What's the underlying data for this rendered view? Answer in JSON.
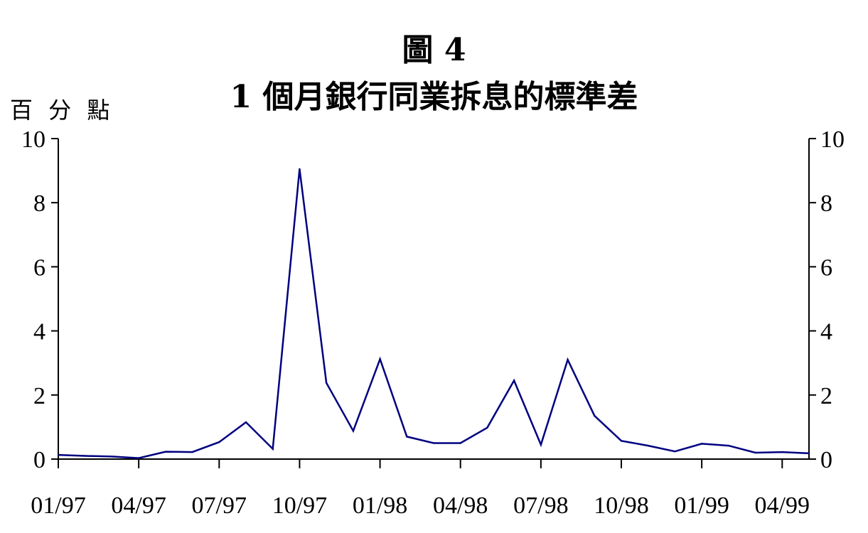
{
  "chart_data": {
    "type": "line",
    "title": "圖 4",
    "subtitle": "1 個月銀行同業拆息的標準差",
    "ylabel": "百 分 點",
    "xlabel": "",
    "ylim": [
      0,
      10
    ],
    "yticks": [
      "0",
      "2",
      "4",
      "6",
      "8",
      "10"
    ],
    "xtick_labels": [
      "01/97",
      "04/97",
      "07/97",
      "10/97",
      "01/98",
      "04/98",
      "07/98",
      "10/98",
      "01/99",
      "04/99"
    ],
    "grid": false,
    "dual_y_axis": true,
    "line_color": "#000080",
    "x": [
      "01/97",
      "02/97",
      "03/97",
      "04/97",
      "05/97",
      "06/97",
      "07/97",
      "08/97",
      "09/97",
      "10/97",
      "11/97",
      "12/97",
      "01/98",
      "02/98",
      "03/98",
      "04/98",
      "05/98",
      "06/98",
      "07/98",
      "08/98",
      "09/98",
      "10/98",
      "11/98",
      "12/98",
      "01/99",
      "02/99",
      "03/99",
      "04/99",
      "05/99"
    ],
    "values": [
      0.13,
      0.1,
      0.08,
      0.03,
      0.23,
      0.22,
      0.53,
      1.15,
      0.32,
      9.05,
      2.38,
      0.88,
      3.12,
      0.7,
      0.5,
      0.5,
      0.98,
      2.45,
      0.45,
      3.1,
      1.35,
      0.57,
      0.42,
      0.24,
      0.48,
      0.42,
      0.2,
      0.22,
      0.18
    ]
  }
}
